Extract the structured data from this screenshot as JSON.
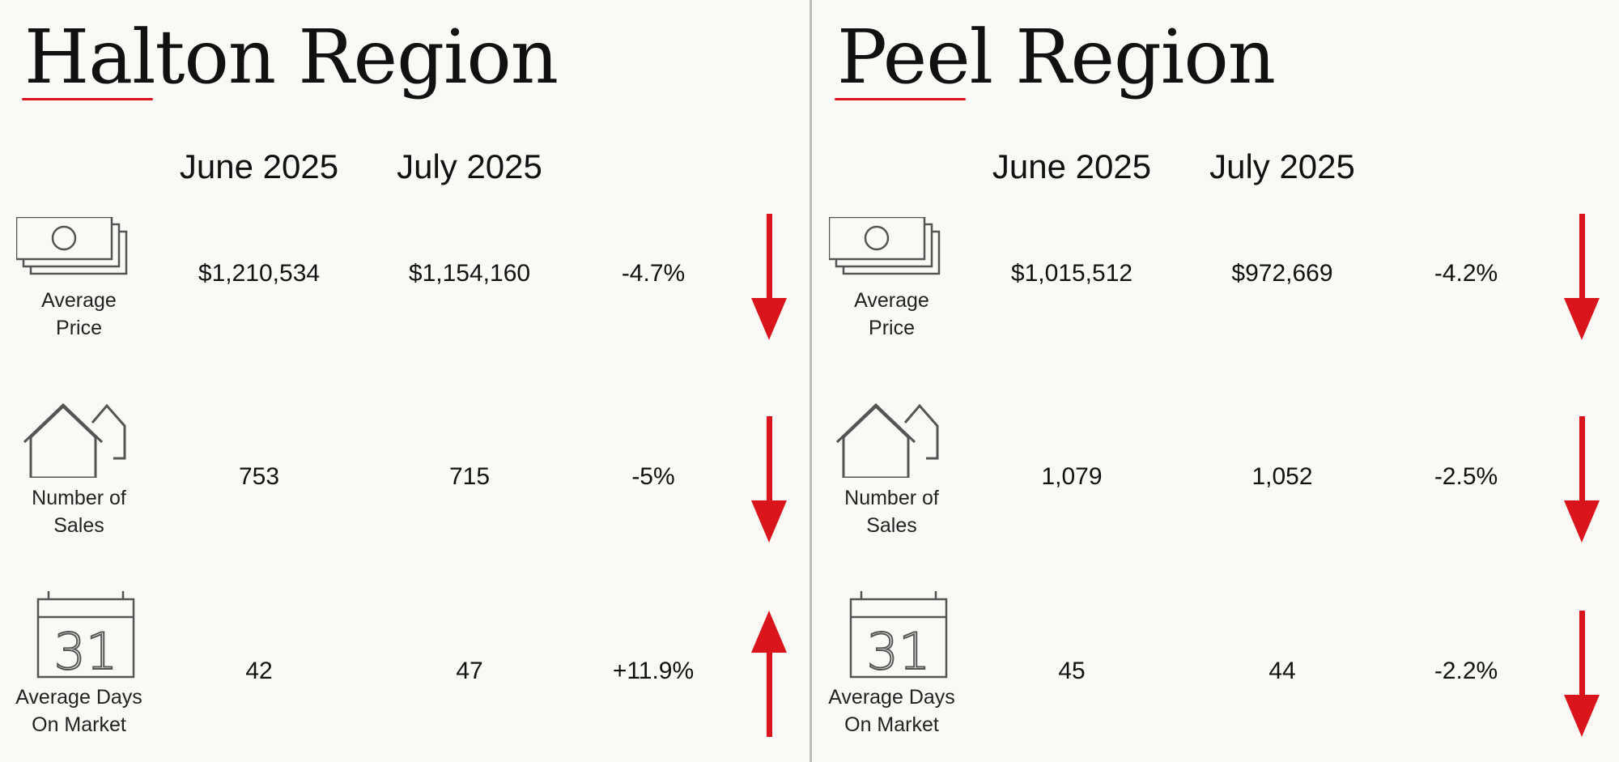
{
  "columns": [
    "June 2025",
    "July 2025"
  ],
  "metric_labels": {
    "price": [
      "Average",
      "Price"
    ],
    "sales": [
      "Number of",
      "Sales"
    ],
    "dom": [
      "Average Days",
      "On Market"
    ]
  },
  "calendar_day": "31",
  "colors": {
    "accent": "#d9141b",
    "icon": "#555555",
    "divider": "#bdbdbd"
  },
  "regions": [
    {
      "title": "Halton Region",
      "rows": [
        {
          "june": "$1,210,534",
          "july": "$1,154,160",
          "change": "-4.7%",
          "direction": "down"
        },
        {
          "june": "753",
          "july": "715",
          "change": "-5%",
          "direction": "down"
        },
        {
          "june": "42",
          "july": "47",
          "change": "+11.9%",
          "direction": "up"
        }
      ]
    },
    {
      "title": "Peel Region",
      "rows": [
        {
          "june": "$1,015,512",
          "july": "$972,669",
          "change": "-4.2%",
          "direction": "down"
        },
        {
          "june": "1,079",
          "july": "1,052",
          "change": "-2.5%",
          "direction": "down"
        },
        {
          "june": "45",
          "july": "44",
          "change": "-2.2%",
          "direction": "down"
        }
      ]
    }
  ]
}
